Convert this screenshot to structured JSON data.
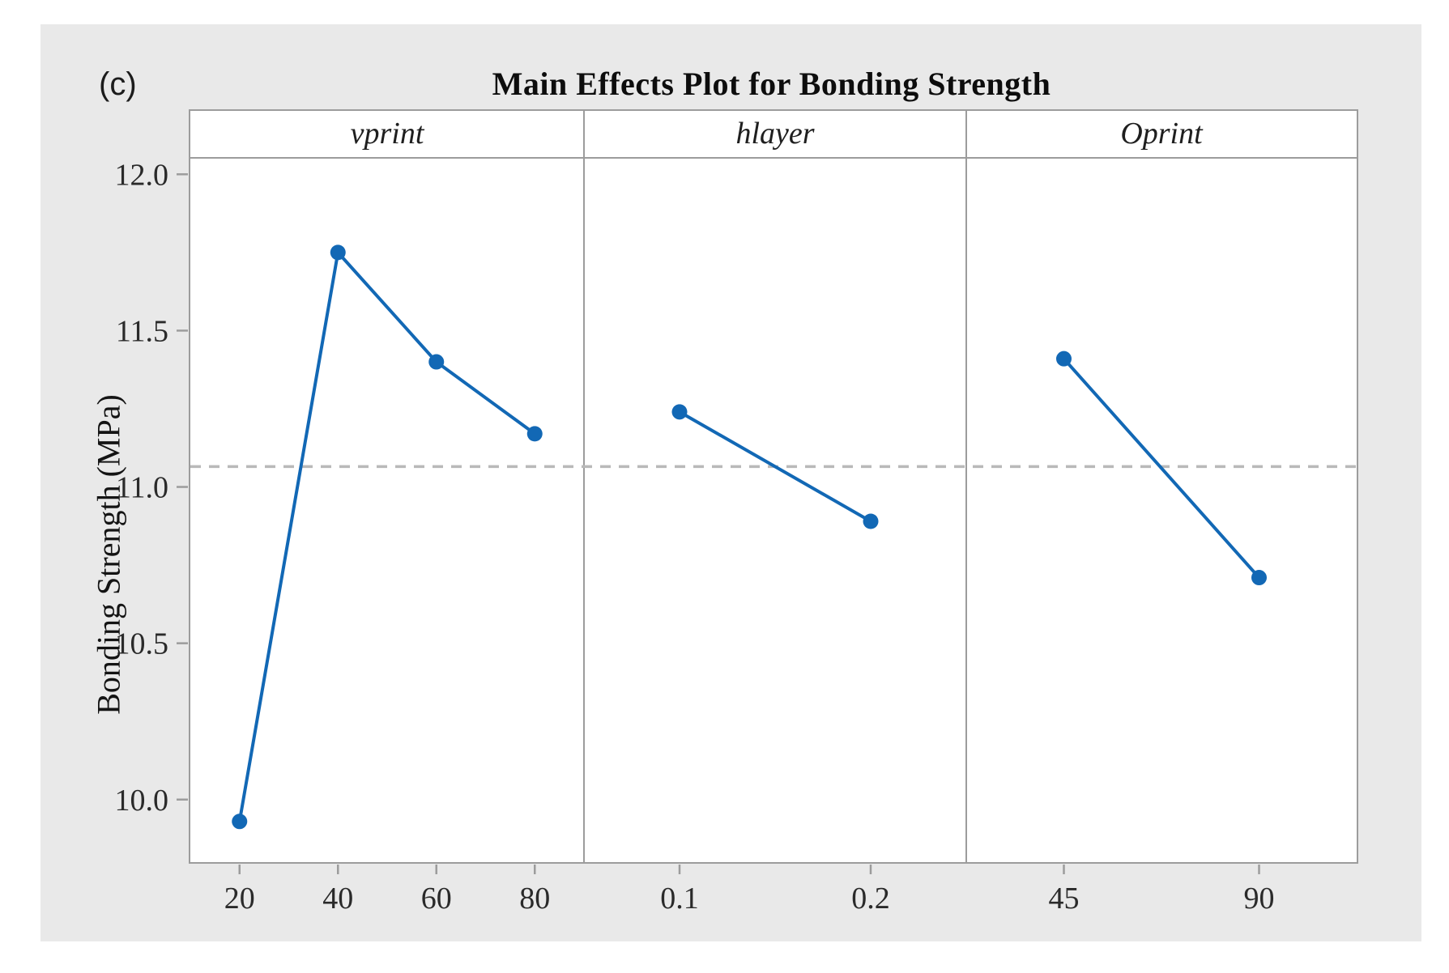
{
  "figure_label": "(c)",
  "title": "Main Effects Plot for Bonding Strength",
  "chart_data": {
    "type": "line",
    "title": "Main Effects Plot for Bonding Strength",
    "ylabel": "Bonding Strength (MPa)",
    "ylim": [
      9.8,
      12.05
    ],
    "yticks": [
      {
        "value": 10.0,
        "label": "10.0"
      },
      {
        "value": 10.5,
        "label": "10.5"
      },
      {
        "value": 11.0,
        "label": "11.0"
      },
      {
        "value": 11.5,
        "label": "11.5"
      },
      {
        "value": 12.0,
        "label": "12.0"
      }
    ],
    "grand_mean": 11.065,
    "grid": false,
    "legend": "none",
    "panels": [
      {
        "factor": "vprint",
        "categories": [
          "20",
          "40",
          "60",
          "80"
        ],
        "values": [
          9.93,
          11.75,
          11.4,
          11.17
        ]
      },
      {
        "factor": "hlayer",
        "categories": [
          "0.1",
          "0.2"
        ],
        "values": [
          11.24,
          10.89
        ]
      },
      {
        "factor": "Oprint",
        "categories": [
          "45",
          "90"
        ],
        "values": [
          11.41,
          10.71
        ]
      }
    ],
    "colors": {
      "series": "#1268b5",
      "mean_line": "#b9b9b9",
      "frame": "#9c9c9c",
      "tick_text": "#2a2a2a"
    }
  }
}
